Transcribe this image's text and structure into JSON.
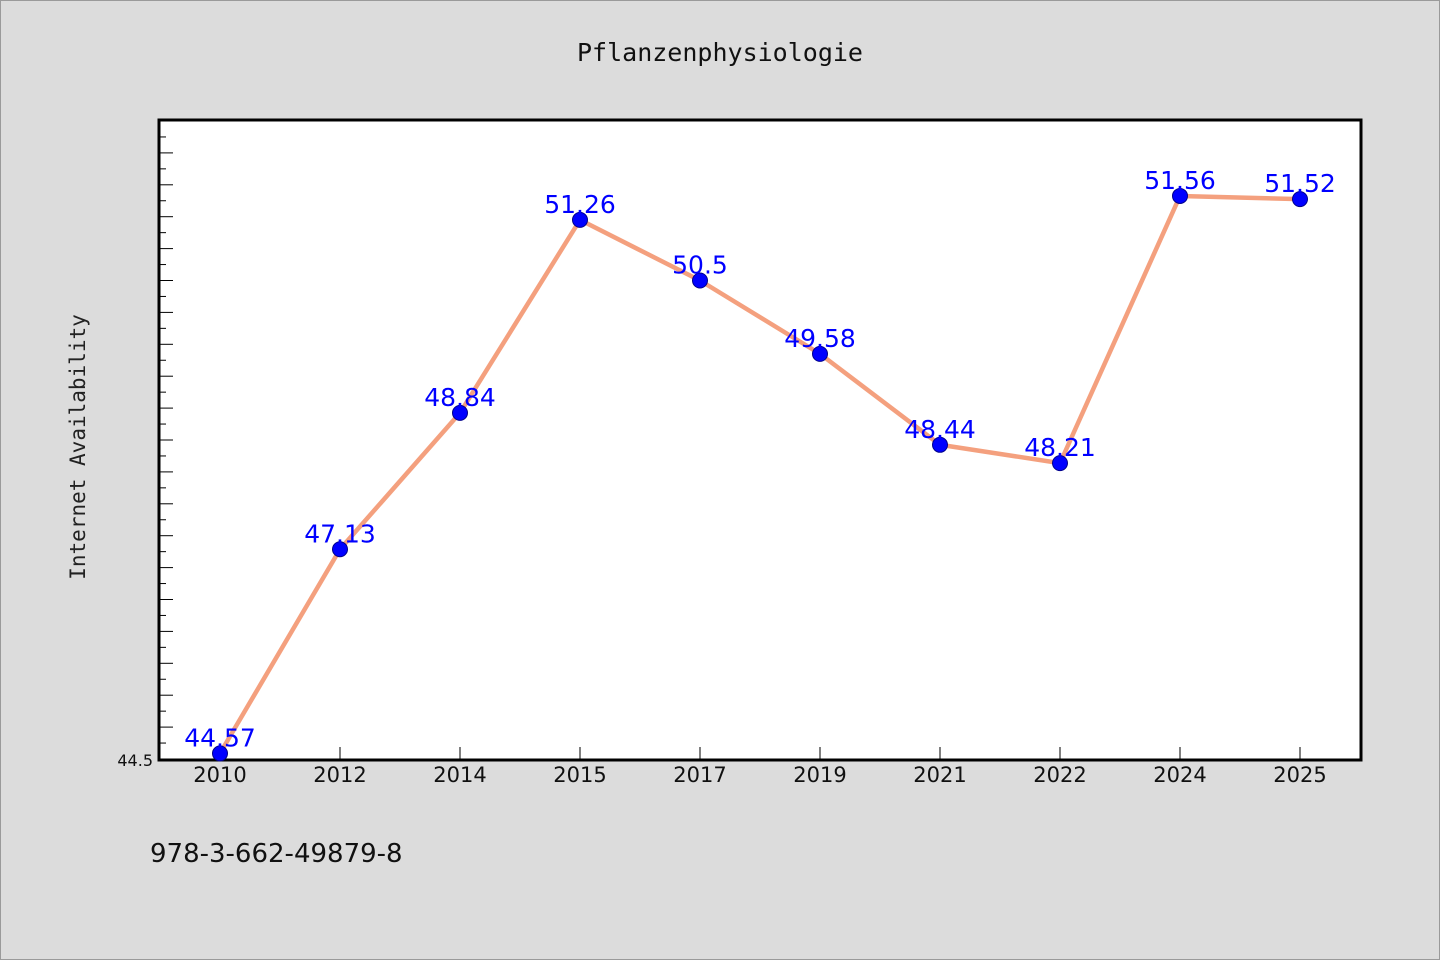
{
  "chart_data": {
    "type": "line",
    "title": "Pflanzenphysiologie",
    "xlabel": "",
    "ylabel": "Internet Availability",
    "categories": [
      "2010",
      "2012",
      "2014",
      "2015",
      "2017",
      "2019",
      "2021",
      "2022",
      "2024",
      "2025"
    ],
    "series": [
      {
        "values": [
          44.57,
          47.13,
          48.84,
          51.26,
          50.5,
          49.58,
          48.44,
          48.21,
          51.56,
          51.52
        ],
        "line_color": "#f4a07e",
        "marker_color": "#0000ff"
      }
    ],
    "ylim": [
      44.5,
      52.5
    ],
    "y_tick_labels": [
      "44.5"
    ],
    "grid": false,
    "legend": "none",
    "data_labels": true,
    "plot_background": "#ffffff",
    "figure_background": "#dcdcdc"
  },
  "footnote": "978-3-662-49879-8"
}
